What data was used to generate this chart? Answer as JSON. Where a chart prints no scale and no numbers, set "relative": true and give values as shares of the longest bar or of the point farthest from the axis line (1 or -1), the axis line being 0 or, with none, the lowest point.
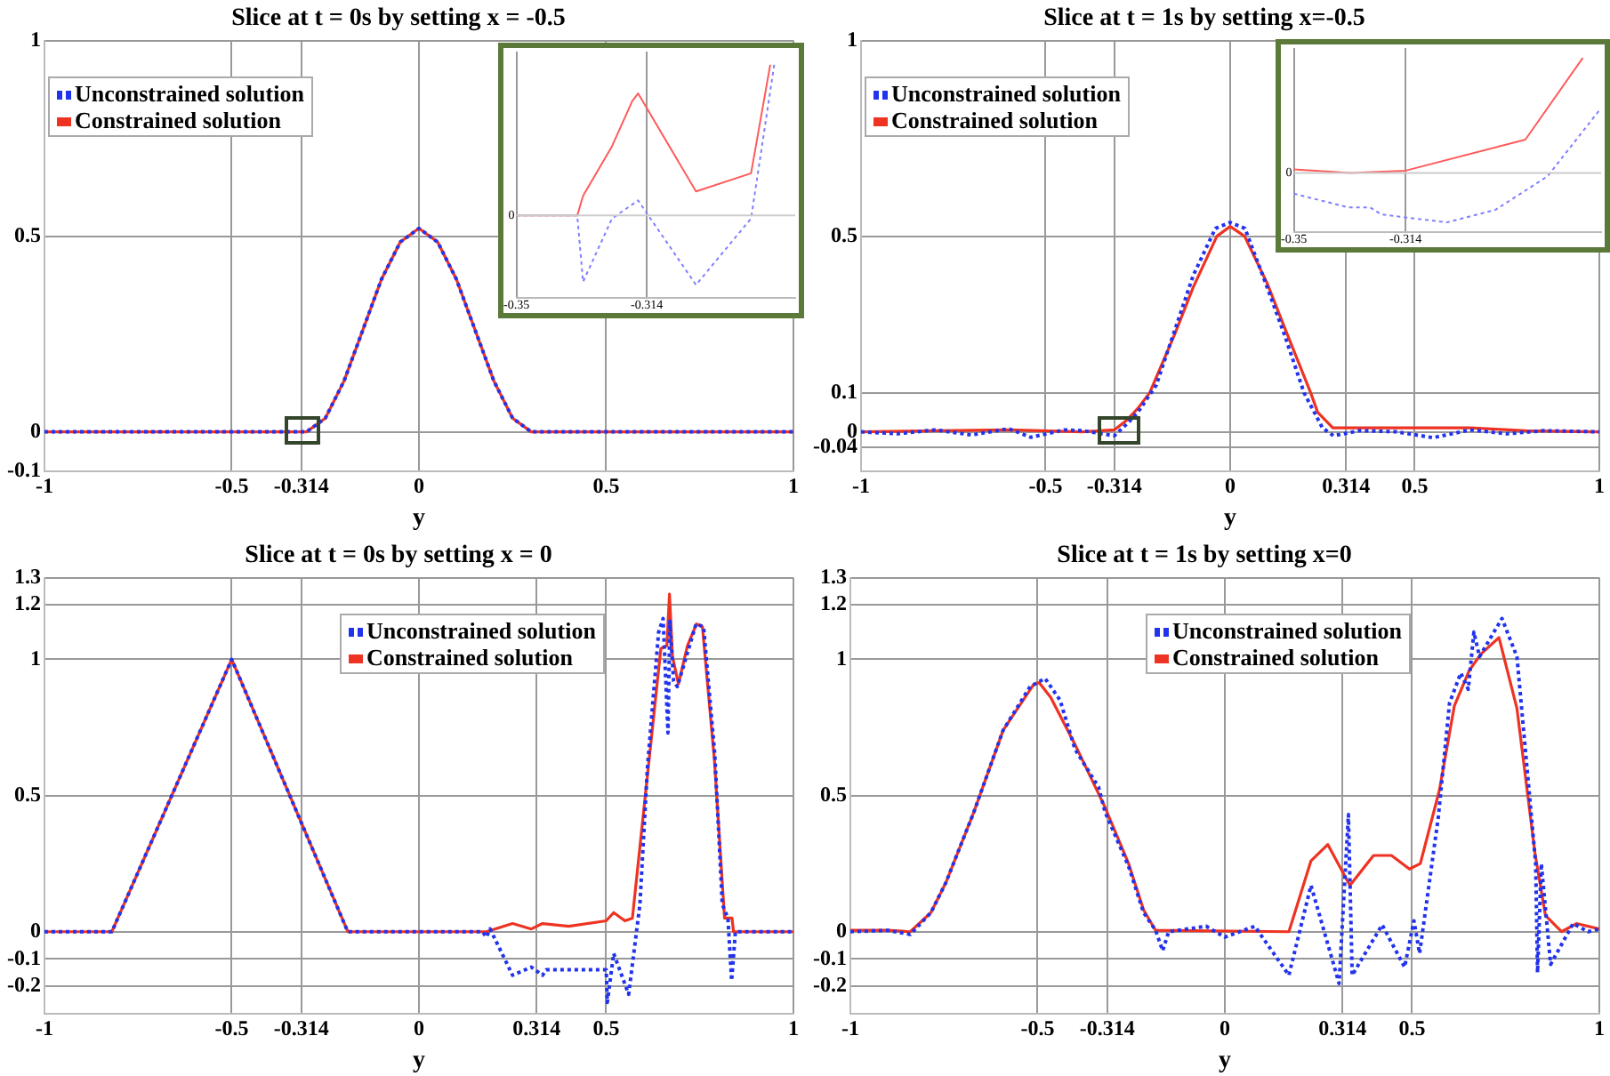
{
  "chart_data": [
    {
      "type": "line",
      "title": "Slice at t = 0s by setting x = -0.5",
      "xlabel": "y",
      "xlim": [
        -1,
        1
      ],
      "xticks": [
        -1,
        -0.5,
        -0.314,
        0,
        0.5,
        1
      ],
      "ylim": [
        -0.1,
        1
      ],
      "yticks": [
        -0.1,
        0,
        0.5,
        1
      ],
      "grid": true,
      "legend": "top left",
      "marker": "none",
      "series": [
        {
          "name": "Unconstrained solution",
          "color": "#2233ee",
          "line_style": "dotted",
          "x": [
            -1,
            -0.3,
            -0.25,
            -0.2,
            -0.15,
            -0.1,
            -0.05,
            0,
            0.05,
            0.1,
            0.15,
            0.2,
            0.25,
            0.3,
            1
          ],
          "values": [
            0,
            0,
            0.035,
            0.13,
            0.26,
            0.39,
            0.485,
            0.52,
            0.485,
            0.39,
            0.26,
            0.13,
            0.035,
            0,
            0
          ]
        },
        {
          "name": "Constrained solution",
          "color": "#ee3322",
          "line_style": "solid",
          "x": [
            -1,
            -0.3,
            -0.25,
            -0.2,
            -0.15,
            -0.1,
            -0.05,
            0,
            0.05,
            0.1,
            0.15,
            0.2,
            0.25,
            0.3,
            1
          ],
          "values": [
            0,
            0,
            0.035,
            0.13,
            0.26,
            0.39,
            0.485,
            0.52,
            0.485,
            0.39,
            0.26,
            0.13,
            0.035,
            0,
            0
          ]
        }
      ]
    },
    {
      "type": "line",
      "title": "Slice at t = 1s by setting x=-0.5",
      "xlabel": "y",
      "xlim": [
        -1,
        1
      ],
      "xticks": [
        -1,
        -0.5,
        -0.314,
        0,
        0.314,
        0.5,
        1
      ],
      "ylim": [
        -0.1,
        1
      ],
      "yticks": [
        -0.04,
        0,
        0.1,
        0.5,
        1
      ],
      "grid": true,
      "legend": "top left",
      "marker": "none",
      "series": [
        {
          "name": "Unconstrained solution",
          "color": "#2233ee",
          "line_style": "dotted",
          "x": [
            -1,
            -0.9,
            -0.8,
            -0.7,
            -0.6,
            -0.54,
            -0.45,
            -0.4,
            -0.314,
            -0.28,
            -0.25,
            -0.2,
            -0.15,
            -0.1,
            -0.04,
            0,
            0.04,
            0.1,
            0.15,
            0.2,
            0.25,
            0.28,
            0.35,
            0.45,
            0.55,
            0.65,
            0.75,
            0.85,
            1
          ],
          "values": [
            0,
            -0.005,
            0.005,
            -0.008,
            0.008,
            -0.014,
            0.005,
            0.003,
            -0.01,
            0.02,
            0.05,
            0.12,
            0.26,
            0.4,
            0.52,
            0.535,
            0.52,
            0.37,
            0.24,
            0.1,
            0.01,
            -0.01,
            0.003,
            0,
            -0.015,
            0.005,
            -0.005,
            0.003,
            0
          ]
        },
        {
          "name": "Constrained solution",
          "color": "#ee3322",
          "line_style": "solid",
          "x": [
            -1,
            -0.6,
            -0.4,
            -0.314,
            -0.28,
            -0.25,
            -0.218,
            -0.15,
            -0.1,
            -0.036,
            0,
            0.039,
            0.1,
            0.15,
            0.218,
            0.237,
            0.278,
            0.5,
            0.65,
            0.8,
            1
          ],
          "values": [
            0,
            0.005,
            0,
            0.005,
            0.03,
            0.06,
            0.1,
            0.25,
            0.37,
            0.5,
            0.525,
            0.5,
            0.38,
            0.26,
            0.1,
            0.05,
            0.01,
            0.01,
            0.01,
            0.003,
            0
          ]
        }
      ]
    },
    {
      "type": "line",
      "title": "Slice at t = 0s by setting x = 0",
      "xlabel": "y",
      "xlim": [
        -1,
        1
      ],
      "xticks": [
        -1,
        -0.5,
        -0.314,
        0,
        0.314,
        0.5,
        1
      ],
      "ylim": [
        -0.3,
        1.3
      ],
      "yticks": [
        -0.2,
        -0.1,
        0,
        0.5,
        1,
        1.2,
        1.3
      ],
      "grid": true,
      "legend": "top",
      "marker": "none",
      "series": [
        {
          "name": "Unconstrained solution",
          "color": "#2233ee",
          "line_style": "dotted",
          "x": [
            -1,
            -0.82,
            -0.5,
            -0.19,
            0.17,
            0.18,
            0.19,
            0.25,
            0.3,
            0.33,
            0.34,
            0.5,
            0.503,
            0.52,
            0.56,
            0.59,
            0.61,
            0.64,
            0.652,
            0.665,
            0.67,
            0.68,
            0.69,
            0.74,
            0.76,
            0.79,
            0.81,
            0.825,
            0.835,
            0.845,
            1
          ],
          "values": [
            0,
            0,
            1,
            0,
            0,
            -0.02,
            0.01,
            -0.16,
            -0.13,
            -0.16,
            -0.14,
            -0.14,
            -0.26,
            -0.08,
            -0.23,
            0.1,
            0.6,
            1.1,
            1.15,
            0.73,
            1.14,
            0.92,
            0.9,
            1.13,
            1.12,
            0.65,
            0.1,
            0.05,
            -0.18,
            0,
            0
          ]
        },
        {
          "name": "Constrained solution",
          "color": "#ee3322",
          "line_style": "solid",
          "x": [
            -1,
            -0.82,
            -0.5,
            -0.19,
            0.18,
            0.25,
            0.3,
            0.33,
            0.4,
            0.5,
            0.52,
            0.55,
            0.57,
            0.606,
            0.646,
            0.662,
            0.669,
            0.677,
            0.693,
            0.717,
            0.741,
            0.757,
            0.789,
            0.816,
            0.836,
            0.84,
            1
          ],
          "values": [
            0,
            0,
            1,
            0,
            0,
            0.03,
            0.01,
            0.03,
            0.02,
            0.04,
            0.07,
            0.04,
            0.05,
            0.52,
            1.04,
            1.05,
            1.24,
            1.01,
            0.91,
            1.05,
            1.13,
            1.12,
            0.63,
            0.05,
            0.05,
            0,
            0
          ]
        }
      ]
    },
    {
      "type": "line",
      "title": "Slice at t = 1s by setting x=0",
      "xlabel": "y",
      "xlim": [
        -1,
        1
      ],
      "xticks": [
        -1,
        -0.5,
        -0.314,
        0,
        0.314,
        0.5,
        1
      ],
      "ylim": [
        -0.3,
        1.3
      ],
      "yticks": [
        -0.2,
        -0.1,
        0,
        0.5,
        1,
        1.2,
        1.3
      ],
      "grid": true,
      "legend": "top",
      "marker": "none",
      "series": [
        {
          "name": "Unconstrained solution",
          "color": "#2233ee",
          "line_style": "dotted",
          "x": [
            -1,
            -0.9,
            -0.84,
            -0.785,
            -0.745,
            -0.67,
            -0.592,
            -0.52,
            -0.48,
            -0.44,
            -0.4,
            -0.337,
            -0.32,
            -0.257,
            -0.217,
            -0.185,
            -0.166,
            -0.15,
            -0.05,
            0,
            0.08,
            0.171,
            0.23,
            0.305,
            0.33,
            0.34,
            0.42,
            0.48,
            0.505,
            0.52,
            0.57,
            0.6,
            0.63,
            0.65,
            0.665,
            0.68,
            0.74,
            0.78,
            0.83,
            0.835,
            0.845,
            0.87,
            0.93,
            0.97,
            1
          ],
          "values": [
            0,
            0.005,
            -0.01,
            0.07,
            0.18,
            0.44,
            0.74,
            0.9,
            0.93,
            0.85,
            0.67,
            0.53,
            0.44,
            0.24,
            0.07,
            0.005,
            -0.07,
            0,
            0.02,
            -0.02,
            0.02,
            -0.16,
            0.17,
            -0.19,
            0.43,
            -0.16,
            0.025,
            -0.13,
            0.04,
            -0.08,
            0.42,
            0.84,
            0.95,
            0.89,
            1.1,
            1.01,
            1.15,
            1.01,
            0.25,
            -0.15,
            0.25,
            -0.12,
            0.03,
            0,
            0.01
          ]
        },
        {
          "name": "Constrained solution",
          "color": "#ee3322",
          "line_style": "solid",
          "x": [
            -1,
            -0.9,
            -0.84,
            -0.785,
            -0.745,
            -0.67,
            -0.592,
            -0.512,
            -0.496,
            -0.465,
            -0.401,
            -0.321,
            -0.257,
            -0.217,
            -0.185,
            0.171,
            0.23,
            0.275,
            0.334,
            0.397,
            0.445,
            0.493,
            0.522,
            0.573,
            0.613,
            0.653,
            0.684,
            0.732,
            0.78,
            0.828,
            0.856,
            0.899,
            0.939,
            1
          ],
          "values": [
            0.005,
            0.005,
            0,
            0.07,
            0.18,
            0.44,
            0.74,
            0.905,
            0.915,
            0.86,
            0.69,
            0.46,
            0.25,
            0.08,
            0.005,
            0,
            0.26,
            0.32,
            0.17,
            0.28,
            0.28,
            0.23,
            0.25,
            0.52,
            0.83,
            0.96,
            1.02,
            1.08,
            0.82,
            0.29,
            0.06,
            0,
            0.03,
            0.01
          ]
        }
      ]
    },
    {
      "type": "line",
      "relative": true,
      "xlim": [
        -0.35,
        -0.273
      ],
      "xticks": [
        -0.35,
        -0.314
      ],
      "grid": "x",
      "marker": "none",
      "annotations": [
        {
          "text": "0",
          "x": -0.35,
          "y": 0
        }
      ],
      "series": [
        {
          "color": "#7f7fff",
          "line_style": "dotted",
          "x": [
            -0.35,
            -0.3332,
            -0.3316,
            -0.3236,
            -0.3164,
            -0.3004,
            -0.2852,
            -0.2788
          ],
          "values": [
            0,
            0,
            -0.44,
            -0.02,
            0.1,
            -0.46,
            -0.02,
            1
          ]
        },
        {
          "color": "#ff5a5a",
          "line_style": "solid",
          "x": [
            -0.35,
            -0.3332,
            -0.3316,
            -0.3236,
            -0.318,
            -0.3164,
            -0.3004,
            -0.2852,
            -0.2799
          ],
          "values": [
            0,
            0,
            0.13,
            0.46,
            0.76,
            0.81,
            0.16,
            0.28,
            1
          ]
        }
      ]
    },
    {
      "type": "line",
      "relative": true,
      "xlim": [
        -0.35,
        -0.251
      ],
      "xticks": [
        -0.35,
        -0.314
      ],
      "grid": "x",
      "marker": "none",
      "annotations": [
        {
          "text": "0",
          "x": -0.35,
          "y": 0
        }
      ],
      "series": [
        {
          "color": "#7f7fff",
          "line_style": "dotted",
          "x": [
            -0.35,
            -0.3324,
            -0.3254,
            -0.3219,
            -0.3008,
            -0.285,
            -0.2683,
            -0.2517
          ],
          "values": [
            -0.18,
            -0.3,
            -0.3,
            -0.36,
            -0.43,
            -0.32,
            -0.03,
            0.54
          ]
        },
        {
          "color": "#ff5a5a",
          "line_style": "solid",
          "x": [
            -0.35,
            -0.3316,
            -0.314,
            -0.2754,
            -0.2569
          ],
          "values": [
            0.03,
            0,
            0.02,
            0.29,
            1
          ]
        }
      ]
    }
  ]
}
